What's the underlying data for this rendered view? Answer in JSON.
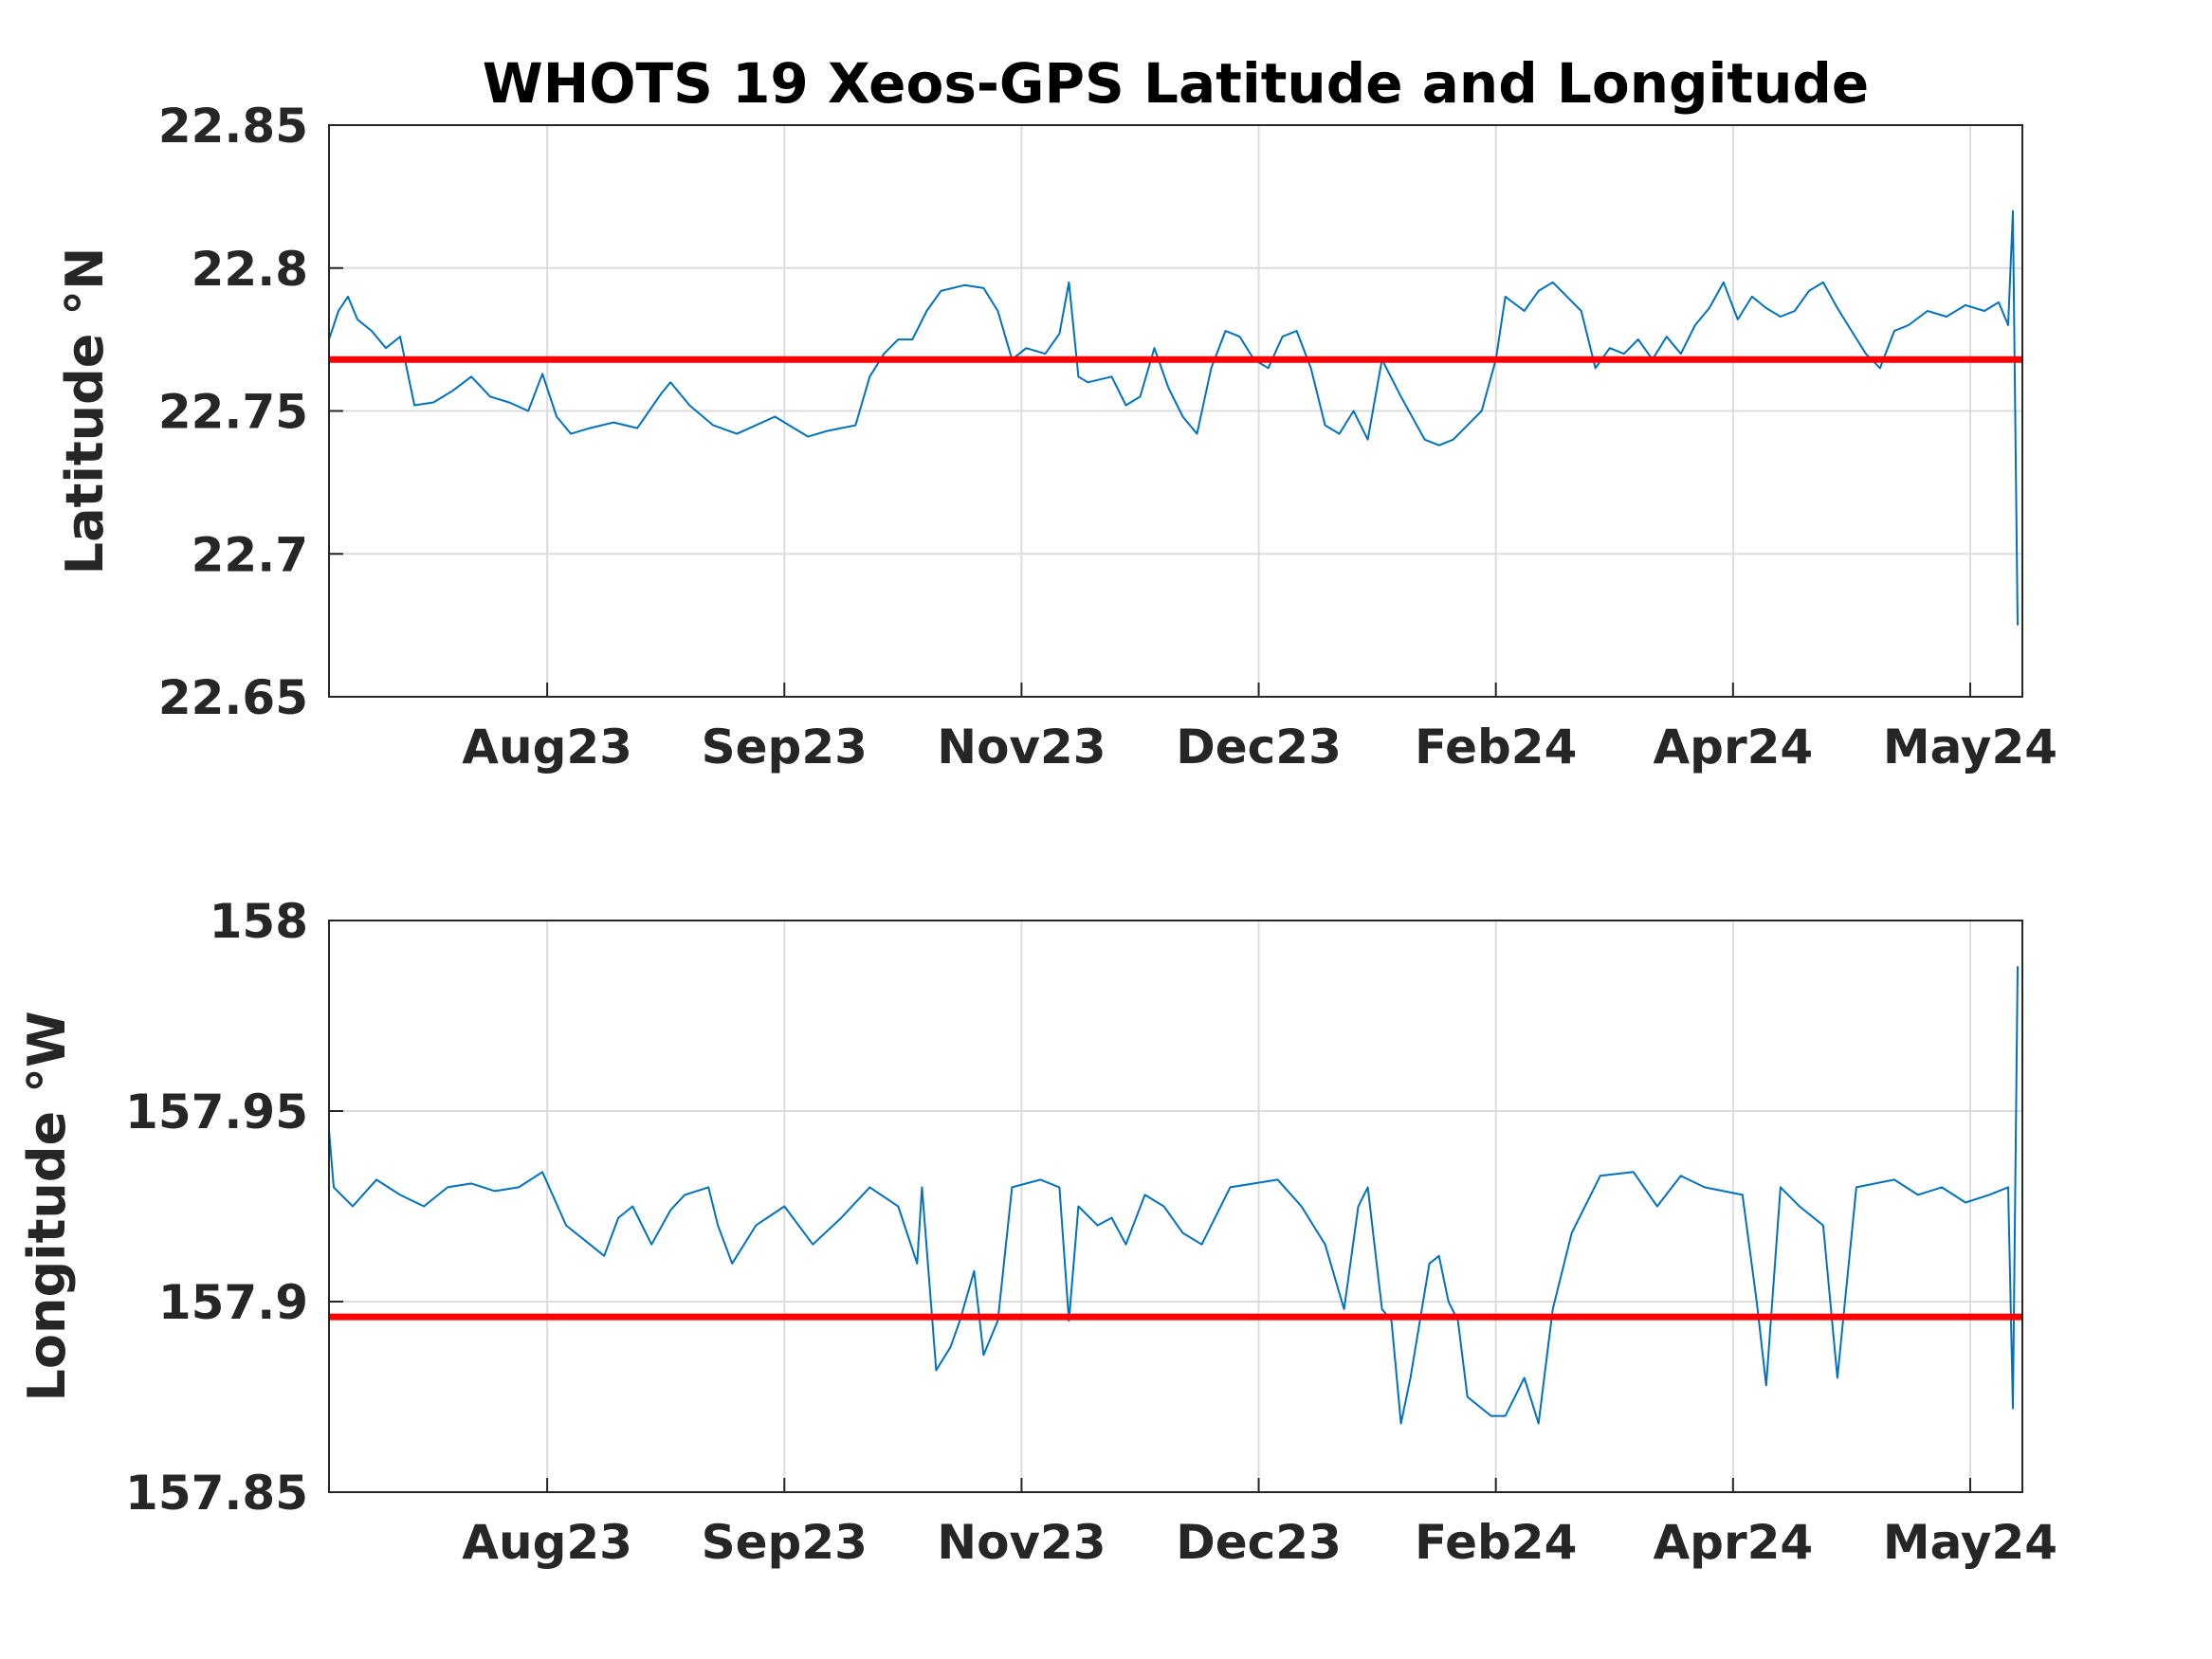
{
  "title": "WHOTS 19 Xeos-GPS Latitude and Longitude",
  "chart_data": [
    {
      "type": "line",
      "ylabel": "Latitude °N",
      "xlim": [
        0,
        357
      ],
      "xticks": [
        {
          "value": 46,
          "label": "Aug23"
        },
        {
          "value": 96,
          "label": "Sep23"
        },
        {
          "value": 146,
          "label": "Nov23"
        },
        {
          "value": 196,
          "label": "Dec23"
        },
        {
          "value": 246,
          "label": "Feb24"
        },
        {
          "value": 296,
          "label": "Apr24"
        },
        {
          "value": 346,
          "label": "May24"
        }
      ],
      "ylim": [
        22.65,
        22.85
      ],
      "yticks": [
        22.65,
        22.7,
        22.75,
        22.8,
        22.85
      ],
      "grid": true,
      "series": [
        {
          "color": "#0072bd",
          "x": [
            0,
            2,
            4,
            6,
            9,
            12,
            15,
            18,
            22,
            26,
            30,
            34,
            38,
            42,
            45,
            48,
            51,
            55,
            60,
            65,
            70,
            72,
            76,
            81,
            86,
            90,
            94,
            98,
            101,
            105,
            111,
            114,
            117,
            120,
            123,
            126,
            129,
            134,
            138,
            141,
            144,
            147,
            151,
            154,
            156,
            158,
            160,
            165,
            168,
            171,
            174,
            177,
            180,
            183,
            186,
            189,
            192,
            195,
            198,
            201,
            204,
            207,
            210,
            213,
            216,
            219,
            222,
            226,
            231,
            234,
            237,
            240,
            243,
            246,
            248,
            252,
            255,
            258,
            261,
            264,
            267,
            270,
            273,
            276,
            279,
            282,
            285,
            288,
            291,
            294,
            297,
            300,
            303,
            306,
            309,
            312,
            315,
            318,
            321,
            324,
            327,
            330,
            333,
            337,
            341,
            345,
            349,
            352,
            354,
            355,
            356
          ],
          "values": [
            22.775,
            22.785,
            22.79,
            22.782,
            22.778,
            22.772,
            22.776,
            22.752,
            22.753,
            22.757,
            22.762,
            22.755,
            22.753,
            22.75,
            22.763,
            22.748,
            22.742,
            22.744,
            22.746,
            22.744,
            22.756,
            22.76,
            22.752,
            22.745,
            22.742,
            22.745,
            22.748,
            22.744,
            22.741,
            22.743,
            22.745,
            22.762,
            22.77,
            22.775,
            22.775,
            22.785,
            22.792,
            22.794,
            22.793,
            22.785,
            22.768,
            22.772,
            22.77,
            22.777,
            22.795,
            22.762,
            22.76,
            22.762,
            22.752,
            22.755,
            22.772,
            22.758,
            22.748,
            22.742,
            22.765,
            22.778,
            22.776,
            22.768,
            22.765,
            22.776,
            22.778,
            22.765,
            22.745,
            22.742,
            22.75,
            22.74,
            22.768,
            22.755,
            22.74,
            22.738,
            22.74,
            22.745,
            22.75,
            22.768,
            22.79,
            22.785,
            22.792,
            22.795,
            22.79,
            22.785,
            22.765,
            22.772,
            22.77,
            22.775,
            22.768,
            22.776,
            22.77,
            22.78,
            22.786,
            22.795,
            22.782,
            22.79,
            22.786,
            22.783,
            22.785,
            22.792,
            22.795,
            22.786,
            22.778,
            22.77,
            22.765,
            22.778,
            22.78,
            22.785,
            22.783,
            22.787,
            22.785,
            22.788,
            22.78,
            22.82,
            22.675
          ]
        },
        {
          "color": "#ff0000",
          "x": [
            0,
            357
          ],
          "values": [
            22.768,
            22.768
          ]
        }
      ]
    },
    {
      "type": "line",
      "ylabel": "Longitude °W",
      "xlim": [
        0,
        357
      ],
      "xticks": [
        {
          "value": 46,
          "label": "Aug23"
        },
        {
          "value": 96,
          "label": "Sep23"
        },
        {
          "value": 146,
          "label": "Nov23"
        },
        {
          "value": 196,
          "label": "Dec23"
        },
        {
          "value": 246,
          "label": "Feb24"
        },
        {
          "value": 296,
          "label": "Apr24"
        },
        {
          "value": 346,
          "label": "May24"
        }
      ],
      "ylim": [
        157.85,
        158
      ],
      "yticks": [
        157.85,
        157.9,
        157.95,
        158
      ],
      "grid": true,
      "series": [
        {
          "color": "#0072bd",
          "x": [
            0,
            1,
            5,
            10,
            15,
            20,
            25,
            30,
            35,
            40,
            45,
            50,
            55,
            58,
            61,
            64,
            68,
            72,
            75,
            80,
            82,
            85,
            90,
            96,
            102,
            108,
            114,
            120,
            124,
            125,
            128,
            131,
            133,
            136,
            138,
            141,
            144,
            150,
            154,
            156,
            158,
            162,
            165,
            168,
            172,
            176,
            180,
            184,
            190,
            195,
            200,
            205,
            210,
            214,
            217,
            219,
            222,
            224,
            226,
            228,
            232,
            234,
            236,
            238,
            240,
            245,
            248,
            252,
            255,
            258,
            262,
            268,
            275,
            280,
            285,
            290,
            298,
            301,
            303,
            306,
            310,
            315,
            318,
            322,
            330,
            335,
            340,
            345,
            350,
            354,
            355,
            356
          ],
          "values": [
            157.945,
            157.93,
            157.925,
            157.932,
            157.928,
            157.925,
            157.93,
            157.931,
            157.929,
            157.93,
            157.934,
            157.92,
            157.915,
            157.912,
            157.922,
            157.925,
            157.915,
            157.924,
            157.928,
            157.93,
            157.92,
            157.91,
            157.92,
            157.925,
            157.915,
            157.922,
            157.93,
            157.925,
            157.91,
            157.93,
            157.882,
            157.888,
            157.895,
            157.908,
            157.886,
            157.895,
            157.93,
            157.932,
            157.93,
            157.895,
            157.925,
            157.92,
            157.922,
            157.915,
            157.928,
            157.925,
            157.918,
            157.915,
            157.93,
            157.931,
            157.932,
            157.925,
            157.915,
            157.898,
            157.925,
            157.93,
            157.898,
            157.895,
            157.868,
            157.88,
            157.91,
            157.912,
            157.9,
            157.895,
            157.875,
            157.87,
            157.87,
            157.88,
            157.868,
            157.898,
            157.918,
            157.933,
            157.934,
            157.925,
            157.933,
            157.93,
            157.928,
            157.9,
            157.878,
            157.93,
            157.925,
            157.92,
            157.88,
            157.93,
            157.932,
            157.928,
            157.93,
            157.926,
            157.928,
            157.93,
            157.872,
            157.988
          ]
        },
        {
          "color": "#ff0000",
          "x": [
            0,
            357
          ],
          "values": [
            157.896,
            157.896
          ]
        }
      ]
    }
  ]
}
